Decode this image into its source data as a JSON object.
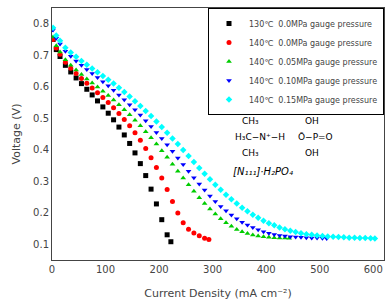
{
  "chart_data": {
    "type": "scatter",
    "xlabel": "Current Density (mA cm⁻²)",
    "ylabel": "Voltage (V)",
    "xlim": [
      0,
      620
    ],
    "ylim": [
      0.05,
      0.85
    ],
    "xticks": [
      0,
      100,
      200,
      300,
      400,
      500,
      600
    ],
    "yticks": [
      0.1,
      0.2,
      0.3,
      0.4,
      0.5,
      0.6,
      0.7,
      0.8
    ],
    "grid": false,
    "legend": "upper right",
    "annotations": [
      "CH₃",
      "H₃C−N⁺−H",
      "CH₃",
      "OH",
      "Ō−P=O",
      "OH",
      "[N₁₁₁]·H₂PO₄"
    ],
    "series": [
      {
        "name": "130℃  0.0MPa gauge pressure",
        "color": "black",
        "marker": "square",
        "x": [
          2,
          8,
          15,
          25,
          35,
          45,
          55,
          65,
          75,
          85,
          95,
          105,
          115,
          125,
          135,
          145,
          155,
          165,
          175,
          185,
          195,
          205,
          215,
          222
        ],
        "values": [
          0.75,
          0.718,
          0.696,
          0.668,
          0.647,
          0.628,
          0.61,
          0.592,
          0.574,
          0.555,
          0.536,
          0.516,
          0.495,
          0.472,
          0.447,
          0.42,
          0.39,
          0.356,
          0.318,
          0.275,
          0.228,
          0.178,
          0.13,
          0.108
        ]
      },
      {
        "name": "140℃  0.0MPa gauge pressure",
        "color": "red",
        "marker": "circle",
        "x": [
          2,
          8,
          15,
          25,
          35,
          45,
          55,
          65,
          75,
          85,
          95,
          105,
          115,
          125,
          135,
          145,
          155,
          165,
          175,
          185,
          195,
          205,
          215,
          225,
          235,
          245,
          255,
          265,
          275,
          285,
          293
        ],
        "values": [
          0.75,
          0.723,
          0.703,
          0.678,
          0.659,
          0.642,
          0.626,
          0.611,
          0.596,
          0.581,
          0.566,
          0.55,
          0.533,
          0.515,
          0.496,
          0.476,
          0.454,
          0.43,
          0.404,
          0.375,
          0.344,
          0.31,
          0.274,
          0.236,
          0.199,
          0.168,
          0.148,
          0.136,
          0.127,
          0.119,
          0.115
        ]
      },
      {
        "name": "140℃  0.05MPa gauge pressure",
        "color": "#00cc00",
        "marker": "triangle-up",
        "x": [
          2,
          8,
          15,
          25,
          35,
          45,
          55,
          65,
          75,
          85,
          95,
          105,
          115,
          125,
          135,
          145,
          155,
          165,
          175,
          185,
          195,
          205,
          215,
          225,
          235,
          245,
          255,
          265,
          275,
          285,
          295,
          305,
          315,
          325,
          335,
          345,
          355,
          365,
          375,
          385,
          395,
          405,
          415,
          425,
          435,
          443
        ],
        "values": [
          0.758,
          0.73,
          0.71,
          0.686,
          0.668,
          0.653,
          0.639,
          0.625,
          0.612,
          0.599,
          0.586,
          0.572,
          0.558,
          0.543,
          0.527,
          0.511,
          0.494,
          0.476,
          0.457,
          0.438,
          0.418,
          0.397,
          0.376,
          0.354,
          0.332,
          0.31,
          0.289,
          0.268,
          0.248,
          0.229,
          0.212,
          0.196,
          0.181,
          0.168,
          0.157,
          0.147,
          0.14,
          0.134,
          0.129,
          0.126,
          0.124,
          0.122,
          0.121,
          0.12,
          0.12,
          0.119
        ]
      },
      {
        "name": "140℃  0.10MPa gauge pressure",
        "color": "blue",
        "marker": "triangle-down",
        "x": [
          2,
          8,
          15,
          25,
          35,
          45,
          55,
          65,
          75,
          85,
          95,
          105,
          115,
          125,
          135,
          145,
          155,
          165,
          175,
          185,
          195,
          205,
          215,
          225,
          235,
          245,
          255,
          265,
          275,
          285,
          295,
          305,
          315,
          325,
          335,
          345,
          355,
          365,
          375,
          385,
          395,
          405,
          415,
          425,
          435,
          445,
          455,
          465,
          475,
          485,
          495,
          505,
          513
        ],
        "values": [
          0.78,
          0.754,
          0.736,
          0.713,
          0.697,
          0.682,
          0.668,
          0.655,
          0.642,
          0.629,
          0.616,
          0.603,
          0.589,
          0.574,
          0.559,
          0.543,
          0.527,
          0.51,
          0.492,
          0.474,
          0.455,
          0.436,
          0.416,
          0.395,
          0.374,
          0.353,
          0.332,
          0.311,
          0.291,
          0.272,
          0.253,
          0.236,
          0.22,
          0.206,
          0.193,
          0.181,
          0.17,
          0.161,
          0.153,
          0.146,
          0.14,
          0.135,
          0.131,
          0.128,
          0.126,
          0.124,
          0.123,
          0.122,
          0.121,
          0.12,
          0.12,
          0.119,
          0.118
        ]
      },
      {
        "name": "140℃  0.15MPa gauge pressure",
        "color": "cyan",
        "marker": "diamond",
        "x": [
          2,
          8,
          15,
          25,
          35,
          45,
          55,
          65,
          75,
          85,
          95,
          105,
          115,
          125,
          135,
          145,
          155,
          165,
          175,
          185,
          195,
          205,
          215,
          225,
          235,
          245,
          255,
          265,
          275,
          285,
          295,
          305,
          315,
          325,
          335,
          345,
          355,
          365,
          375,
          385,
          395,
          405,
          415,
          425,
          435,
          445,
          455,
          465,
          475,
          485,
          495,
          505,
          515,
          525,
          535,
          545,
          555,
          565,
          575,
          585,
          595,
          603
        ],
        "values": [
          0.787,
          0.763,
          0.746,
          0.724,
          0.709,
          0.695,
          0.682,
          0.67,
          0.658,
          0.646,
          0.634,
          0.622,
          0.61,
          0.597,
          0.583,
          0.569,
          0.554,
          0.539,
          0.523,
          0.507,
          0.49,
          0.472,
          0.454,
          0.436,
          0.418,
          0.399,
          0.38,
          0.361,
          0.342,
          0.324,
          0.306,
          0.289,
          0.273,
          0.257,
          0.243,
          0.229,
          0.216,
          0.205,
          0.194,
          0.184,
          0.175,
          0.167,
          0.16,
          0.153,
          0.148,
          0.143,
          0.139,
          0.135,
          0.132,
          0.13,
          0.128,
          0.126,
          0.125,
          0.124,
          0.123,
          0.122,
          0.121,
          0.121,
          0.12,
          0.12,
          0.119,
          0.118
        ]
      }
    ]
  }
}
